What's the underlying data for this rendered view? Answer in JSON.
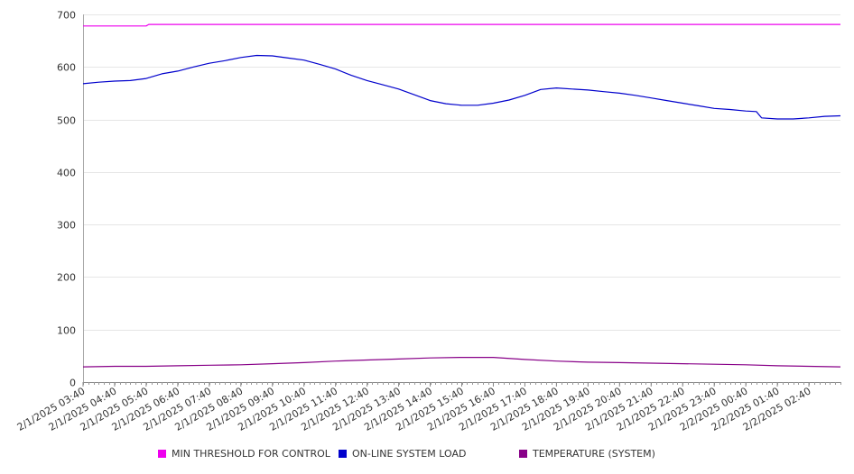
{
  "chart_data": {
    "type": "line",
    "title": "",
    "xlabel": "",
    "ylabel": "",
    "ylim": [
      0,
      700
    ],
    "yticks": [
      0,
      100,
      200,
      300,
      400,
      500,
      600,
      700
    ],
    "grid": true,
    "legend_position": "bottom",
    "x_tick_labels": [
      "2/1/2025 03:40",
      "2/1/2025 04:40",
      "2/1/2025 05:40",
      "2/1/2025 06:40",
      "2/1/2025 07:40",
      "2/1/2025 08:40",
      "2/1/2025 09:40",
      "2/1/2025 10:40",
      "2/1/2025 11:40",
      "2/1/2025 12:40",
      "2/1/2025 13:40",
      "2/1/2025 14:40",
      "2/1/2025 15:40",
      "2/1/2025 16:40",
      "2/1/2025 17:40",
      "2/1/2025 18:40",
      "2/1/2025 19:40",
      "2/1/2025 20:40",
      "2/1/2025 21:40",
      "2/1/2025 22:40",
      "2/1/2025 23:40",
      "2/2/2025 00:40",
      "2/2/2025 01:40",
      "2/2/2025 02:40"
    ],
    "x_time_range": [
      "2/1/2025 03:40",
      "2/2/2025 03:40"
    ],
    "series": [
      {
        "name": "MIN THRESHOLD FOR CONTROL",
        "color": "#ee00ee",
        "points": [
          [
            "2/1/2025 03:40",
            678
          ],
          [
            "2/1/2025 05:40",
            678
          ],
          [
            "2/1/2025 05:45",
            681
          ],
          [
            "2/2/2025 03:40",
            681
          ]
        ]
      },
      {
        "name": "ON-LINE SYSTEM LOAD",
        "color": "#0000cc",
        "points": [
          [
            "2/1/2025 03:40",
            568
          ],
          [
            "2/1/2025 04:10",
            571
          ],
          [
            "2/1/2025 04:40",
            573
          ],
          [
            "2/1/2025 05:10",
            574
          ],
          [
            "2/1/2025 05:40",
            578
          ],
          [
            "2/1/2025 06:10",
            587
          ],
          [
            "2/1/2025 06:40",
            592
          ],
          [
            "2/1/2025 07:10",
            600
          ],
          [
            "2/1/2025 07:40",
            607
          ],
          [
            "2/1/2025 08:10",
            612
          ],
          [
            "2/1/2025 08:40",
            618
          ],
          [
            "2/1/2025 09:10",
            622
          ],
          [
            "2/1/2025 09:40",
            621
          ],
          [
            "2/1/2025 10:10",
            617
          ],
          [
            "2/1/2025 10:40",
            613
          ],
          [
            "2/1/2025 11:10",
            605
          ],
          [
            "2/1/2025 11:40",
            596
          ],
          [
            "2/1/2025 12:10",
            584
          ],
          [
            "2/1/2025 12:40",
            574
          ],
          [
            "2/1/2025 13:10",
            566
          ],
          [
            "2/1/2025 13:40",
            558
          ],
          [
            "2/1/2025 14:10",
            547
          ],
          [
            "2/1/2025 14:40",
            536
          ],
          [
            "2/1/2025 15:10",
            530
          ],
          [
            "2/1/2025 15:40",
            527
          ],
          [
            "2/1/2025 16:10",
            527
          ],
          [
            "2/1/2025 16:40",
            531
          ],
          [
            "2/1/2025 17:10",
            537
          ],
          [
            "2/1/2025 17:40",
            546
          ],
          [
            "2/1/2025 18:10",
            557
          ],
          [
            "2/1/2025 18:40",
            560
          ],
          [
            "2/1/2025 19:10",
            558
          ],
          [
            "2/1/2025 19:40",
            556
          ],
          [
            "2/1/2025 20:10",
            553
          ],
          [
            "2/1/2025 20:40",
            550
          ],
          [
            "2/1/2025 21:10",
            546
          ],
          [
            "2/1/2025 21:40",
            541
          ],
          [
            "2/1/2025 22:10",
            536
          ],
          [
            "2/1/2025 22:40",
            531
          ],
          [
            "2/1/2025 23:10",
            526
          ],
          [
            "2/1/2025 23:40",
            521
          ],
          [
            "2/2/2025 00:10",
            519
          ],
          [
            "2/2/2025 00:40",
            516
          ],
          [
            "2/2/2025 01:00",
            515
          ],
          [
            "2/2/2025 01:10",
            503
          ],
          [
            "2/2/2025 01:40",
            501
          ],
          [
            "2/2/2025 02:10",
            501
          ],
          [
            "2/2/2025 02:40",
            503
          ],
          [
            "2/2/2025 03:10",
            506
          ],
          [
            "2/2/2025 03:40",
            507
          ]
        ]
      },
      {
        "name": "TEMPERATURE (SYSTEM)",
        "color": "#880088",
        "points": [
          [
            "2/1/2025 03:40",
            29
          ],
          [
            "2/1/2025 04:40",
            30
          ],
          [
            "2/1/2025 05:40",
            30
          ],
          [
            "2/1/2025 06:40",
            31
          ],
          [
            "2/1/2025 07:40",
            32
          ],
          [
            "2/1/2025 08:40",
            33
          ],
          [
            "2/1/2025 09:40",
            35
          ],
          [
            "2/1/2025 10:40",
            37
          ],
          [
            "2/1/2025 11:40",
            40
          ],
          [
            "2/1/2025 12:40",
            42
          ],
          [
            "2/1/2025 13:40",
            44
          ],
          [
            "2/1/2025 14:40",
            46
          ],
          [
            "2/1/2025 15:40",
            47
          ],
          [
            "2/1/2025 16:40",
            47
          ],
          [
            "2/1/2025 17:40",
            43
          ],
          [
            "2/1/2025 18:40",
            40
          ],
          [
            "2/1/2025 19:40",
            38
          ],
          [
            "2/1/2025 20:40",
            37
          ],
          [
            "2/1/2025 21:40",
            36
          ],
          [
            "2/1/2025 22:40",
            35
          ],
          [
            "2/1/2025 23:40",
            34
          ],
          [
            "2/2/2025 00:40",
            33
          ],
          [
            "2/2/2025 01:40",
            31
          ],
          [
            "2/2/2025 02:40",
            30
          ],
          [
            "2/2/2025 03:40",
            29
          ]
        ]
      }
    ]
  }
}
